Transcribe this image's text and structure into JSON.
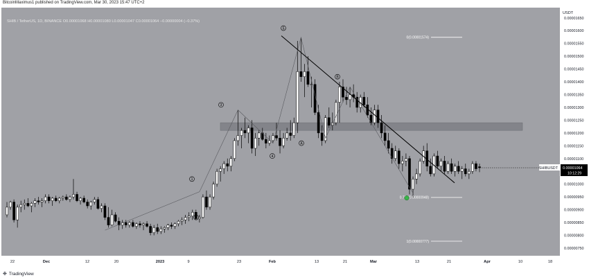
{
  "header": {
    "publisher_line": "BitcoinMaximus1 published on TradingView.com, Mar 30, 2023 15:47 UTC+2"
  },
  "symbol_bar": {
    "pair": "SHIB / TetherUS, 1D, BINANCE",
    "open_label": "O",
    "open": "0.00001068",
    "high_label": "H",
    "high": "0.00001080",
    "low_label": "L",
    "low": "0.00001047",
    "close_label": "C",
    "close": "0.00001064",
    "change": "−0.00000004 (−0.37%)"
  },
  "footer": {
    "brand": "TradingView"
  },
  "colors": {
    "background": "#a0a1a6",
    "up_candle": "#ffffff",
    "down_candle": "#000000",
    "zone": "#7a7b80",
    "price_tag_bg": "#000000",
    "green_marker": "#3ab54a"
  },
  "chart_data": {
    "type": "candlestick",
    "title": "SHIB / TetherUS, 1D, BINANCE",
    "ylabel": "USDT",
    "ylim": [
      7.2e-06,
      1.68e-05
    ],
    "x_tick_labels": [
      "22",
      "Dec",
      "12",
      "20",
      "2023",
      "9",
      "23",
      "Feb",
      "13",
      "21",
      "Mar",
      "13",
      "21",
      "Apr",
      "10",
      "18"
    ],
    "y_tick_labels": [
      "0.00001650",
      "0.00001600",
      "0.00001550",
      "0.00001500",
      "0.00001450",
      "0.00001400",
      "0.00001350",
      "0.00001300",
      "0.00001250",
      "0.00001200",
      "0.00001150",
      "0.00001100",
      "0.00001050",
      "0.00001000",
      "0.00000950",
      "0.00000900",
      "0.00000850",
      "0.00000800",
      "0.00000750"
    ],
    "current_price": {
      "symbol": "SHIBUSDT",
      "value": "0.00001064",
      "countdown": "10:12:29",
      "price": 1.064e-05
    },
    "fib_levels": [
      {
        "label": "0(0.00001574)",
        "price": 1.574e-05
      },
      {
        "label": "0.786(0.00000948)",
        "price": 9.48e-06
      },
      {
        "label": "1(0.00000777)",
        "price": 7.77e-06
      }
    ],
    "resistance_zone": {
      "low": 1.21e-05,
      "high": 1.24e-05
    },
    "wave_labels": [
      "1",
      "2",
      "3",
      "4",
      "5",
      "A",
      "B"
    ],
    "candles": [
      [
        8.8e-06,
        9.3e-06,
        8.7e-06,
        9.1e-06
      ],
      [
        9.1e-06,
        9.35e-06,
        9e-06,
        9.3e-06
      ],
      [
        9.3e-06,
        9.4e-06,
        8.5e-06,
        8.6e-06
      ],
      [
        8.6e-06,
        9.2e-06,
        8.3e-06,
        9.1e-06
      ],
      [
        9.1e-06,
        9.35e-06,
        8.9e-06,
        9.2e-06
      ],
      [
        9.2e-06,
        9.4e-06,
        9e-06,
        9.25e-06
      ],
      [
        9.25e-06,
        9.45e-06,
        9.1e-06,
        9.15e-06
      ],
      [
        9.15e-06,
        9.3e-06,
        8.9e-06,
        9.25e-06
      ],
      [
        9.25e-06,
        9.45e-06,
        9.1e-06,
        9.35e-06
      ],
      [
        9.35e-06,
        9.5e-06,
        9.2e-06,
        9.3e-06
      ],
      [
        9.3e-06,
        9.45e-06,
        9.1e-06,
        9.35e-06
      ],
      [
        9.35e-06,
        9.6e-06,
        9.25e-06,
        9.5e-06
      ],
      [
        9.5e-06,
        9.6e-06,
        9.25e-06,
        9.35e-06
      ],
      [
        9.35e-06,
        9.5e-06,
        9.15e-06,
        9.45e-06
      ],
      [
        9.45e-06,
        9.55e-06,
        9.3e-06,
        9.35e-06
      ],
      [
        9.35e-06,
        9.5e-06,
        9.25e-06,
        9.45e-06
      ],
      [
        9.45e-06,
        9.55e-06,
        9.35e-06,
        9.5e-06
      ],
      [
        9.5e-06,
        9.6e-06,
        9.35e-06,
        9.4e-06
      ],
      [
        9.4e-06,
        9.55e-06,
        9.3e-06,
        9.5e-06
      ],
      [
        9.5e-06,
        1.02e-05,
        9.4e-06,
        9.6e-06
      ],
      [
        9.6e-06,
        9.7e-06,
        9.3e-06,
        9.35e-06
      ],
      [
        9.35e-06,
        9.5e-06,
        9.2e-06,
        9.45e-06
      ],
      [
        9.45e-06,
        9.55e-06,
        9.25e-06,
        9.3e-06
      ],
      [
        9.3e-06,
        9.4e-06,
        9.05e-06,
        9.15e-06
      ],
      [
        9.15e-06,
        9.35e-06,
        9e-06,
        9.3e-06
      ],
      [
        9.3e-06,
        9.5e-06,
        9.2e-06,
        9.4e-06
      ],
      [
        9.4e-06,
        9.5e-06,
        9e-06,
        9.05e-06
      ],
      [
        9.05e-06,
        9.25e-06,
        8.9e-06,
        9.15e-06
      ],
      [
        9.15e-06,
        9.25e-06,
        8.6e-06,
        8.7e-06
      ],
      [
        8.7e-06,
        9.1e-06,
        8.3e-06,
        8.4e-06
      ],
      [
        8.4e-06,
        9e-06,
        8.35e-06,
        8.8e-06
      ],
      [
        8.8e-06,
        8.9e-06,
        8.5e-06,
        8.55e-06
      ],
      [
        8.55e-06,
        8.7e-06,
        8.2e-06,
        8.4e-06
      ],
      [
        8.4e-06,
        8.6e-06,
        8.25e-06,
        8.5e-06
      ],
      [
        8.5e-06,
        8.6e-06,
        8.3e-06,
        8.4e-06
      ],
      [
        8.4e-06,
        8.55e-06,
        8.3e-06,
        8.5e-06
      ],
      [
        8.5e-06,
        8.6e-06,
        8.3e-06,
        8.35e-06
      ],
      [
        8.35e-06,
        8.5e-06,
        8.25e-06,
        8.45e-06
      ],
      [
        8.45e-06,
        8.55e-06,
        8.3e-06,
        8.4e-06
      ],
      [
        8.4e-06,
        8.5e-06,
        8.2e-06,
        8.45e-06
      ],
      [
        8.45e-06,
        8.55e-06,
        8.3e-06,
        8.35e-06
      ],
      [
        8.35e-06,
        8.45e-06,
        8e-06,
        8.1e-06
      ],
      [
        8.1e-06,
        8.4e-06,
        8e-06,
        8.3e-06
      ],
      [
        8.3e-06,
        8.45e-06,
        8.05e-06,
        8.15e-06
      ],
      [
        8.15e-06,
        8.35e-06,
        8.05e-06,
        8.25e-06
      ],
      [
        8.25e-06,
        8.35e-06,
        8.1e-06,
        8.3e-06
      ],
      [
        8.3e-06,
        8.45e-06,
        8.2e-06,
        8.4e-06
      ],
      [
        8.4e-06,
        8.5e-06,
        8.25e-06,
        8.35e-06
      ],
      [
        8.35e-06,
        8.5e-06,
        8.25e-06,
        8.45e-06
      ],
      [
        8.45e-06,
        8.6e-06,
        8.35e-06,
        8.55e-06
      ],
      [
        8.55e-06,
        8.7e-06,
        8.4e-06,
        8.6e-06
      ],
      [
        8.6e-06,
        8.8e-06,
        8.45e-06,
        8.7e-06
      ],
      [
        8.7e-06,
        8.9e-06,
        8.55e-06,
        8.75e-06
      ],
      [
        8.75e-06,
        9e-06,
        8.6e-06,
        8.9e-06
      ],
      [
        8.9e-06,
        9e-06,
        8.6e-06,
        8.65e-06
      ],
      [
        8.65e-06,
        8.8e-06,
        8.5e-06,
        8.7e-06
      ],
      [
        8.7e-06,
        9.6e-06,
        8.65e-06,
        9.5e-06
      ],
      [
        9.5e-06,
        9.75e-06,
        9e-06,
        9.1e-06
      ],
      [
        9.1e-06,
        9.6e-06,
        9e-06,
        9.5e-06
      ],
      [
        9.5e-06,
        1.01e-05,
        9.4e-06,
        1e-05
      ],
      [
        1e-05,
        1.06e-05,
        9.9e-06,
        1.05e-05
      ],
      [
        1.05e-05,
        1.07e-05,
        1.01e-05,
        1.06e-05
      ],
      [
        1.06e-05,
        1.09e-05,
        1.04e-05,
        1.08e-05
      ],
      [
        1.08e-05,
        1.1e-05,
        1.05e-05,
        1.07e-05
      ],
      [
        1.07e-05,
        1.11e-05,
        1.05e-05,
        1.1e-05
      ],
      [
        1.1e-05,
        1.18e-05,
        1.09e-05,
        1.17e-05
      ],
      [
        1.17e-05,
        1.29e-05,
        1.15e-05,
        1.19e-05
      ],
      [
        1.19e-05,
        1.22e-05,
        1.14e-05,
        1.21e-05
      ],
      [
        1.21e-05,
        1.26e-05,
        1.18e-05,
        1.2e-05
      ],
      [
        1.2e-05,
        1.23e-05,
        1.16e-05,
        1.22e-05
      ],
      [
        1.22e-05,
        1.25e-05,
        1.12e-05,
        1.14e-05
      ],
      [
        1.14e-05,
        1.2e-05,
        1.11e-05,
        1.18e-05
      ],
      [
        1.18e-05,
        1.21e-05,
        1.15e-05,
        1.2e-05
      ],
      [
        1.2e-05,
        1.22e-05,
        1.17e-05,
        1.175e-05
      ],
      [
        1.175e-05,
        1.2e-05,
        1.14e-05,
        1.16e-05
      ],
      [
        1.16e-05,
        1.19e-05,
        1.15e-05,
        1.17e-05
      ],
      [
        1.17e-05,
        1.2e-05,
        1.16e-05,
        1.19e-05
      ],
      [
        1.19e-05,
        1.24e-05,
        1.17e-05,
        1.18e-05
      ],
      [
        1.18e-05,
        1.21e-05,
        1.12e-05,
        1.15e-05
      ],
      [
        1.15e-05,
        1.2e-05,
        1.14e-05,
        1.18e-05
      ],
      [
        1.18e-05,
        1.22e-05,
        1.17e-05,
        1.2e-05
      ],
      [
        1.2e-05,
        1.25e-05,
        1.17e-05,
        1.19e-05
      ],
      [
        1.19e-05,
        1.26e-05,
        1.18e-05,
        1.24e-05
      ],
      [
        1.24e-05,
        1.56e-05,
        1.2e-05,
        1.44e-05
      ],
      [
        1.44e-05,
        1.574e-05,
        1.4e-05,
        1.42e-05
      ],
      [
        1.42e-05,
        1.47e-05,
        1.34e-05,
        1.44e-05
      ],
      [
        1.44e-05,
        1.5e-05,
        1.38e-05,
        1.39e-05
      ],
      [
        1.39e-05,
        1.42e-05,
        1.3e-05,
        1.39e-05
      ],
      [
        1.39e-05,
        1.41e-05,
        1.27e-05,
        1.28e-05
      ],
      [
        1.28e-05,
        1.31e-05,
        1.18e-05,
        1.2e-05
      ],
      [
        1.2e-05,
        1.23e-05,
        1.15e-05,
        1.17e-05
      ],
      [
        1.17e-05,
        1.27e-05,
        1.16e-05,
        1.26e-05
      ],
      [
        1.26e-05,
        1.3e-05,
        1.22e-05,
        1.23e-05
      ],
      [
        1.23e-05,
        1.28e-05,
        1.21e-05,
        1.24e-05
      ],
      [
        1.24e-05,
        1.33e-05,
        1.23e-05,
        1.32e-05
      ],
      [
        1.32e-05,
        1.4e-05,
        1.24e-05,
        1.38e-05
      ],
      [
        1.38e-05,
        1.41e-05,
        1.32e-05,
        1.34e-05
      ],
      [
        1.34e-05,
        1.38e-05,
        1.31e-05,
        1.33e-05
      ],
      [
        1.33e-05,
        1.38e-05,
        1.3e-05,
        1.35e-05
      ],
      [
        1.35e-05,
        1.39e-05,
        1.32e-05,
        1.34e-05
      ],
      [
        1.34e-05,
        1.36e-05,
        1.28e-05,
        1.3e-05
      ],
      [
        1.3e-05,
        1.35e-05,
        1.28e-05,
        1.34e-05
      ],
      [
        1.34e-05,
        1.36e-05,
        1.3e-05,
        1.31e-05
      ],
      [
        1.31e-05,
        1.34e-05,
        1.26e-05,
        1.27e-05
      ],
      [
        1.27e-05,
        1.3e-05,
        1.23e-05,
        1.24e-05
      ],
      [
        1.24e-05,
        1.31e-05,
        1.23e-05,
        1.29e-05
      ],
      [
        1.29e-05,
        1.31e-05,
        1.22e-05,
        1.24e-05
      ],
      [
        1.24e-05,
        1.27e-05,
        1.18e-05,
        1.2e-05
      ],
      [
        1.2e-05,
        1.23e-05,
        1.15e-05,
        1.17e-05
      ],
      [
        1.17e-05,
        1.2e-05,
        1.12e-05,
        1.14e-05
      ],
      [
        1.14e-05,
        1.16e-05,
        1.08e-05,
        1.1e-05
      ],
      [
        1.1e-05,
        1.15e-05,
        1.09e-05,
        1.13e-05
      ],
      [
        1.13e-05,
        1.14e-05,
        1.06e-05,
        1.08e-05
      ],
      [
        1.08e-05,
        1.11e-05,
        1.05e-05,
        1.09e-05
      ],
      [
        1.09e-05,
        1.12e-05,
        1.07e-05,
        1.1e-05
      ],
      [
        1.1e-05,
        1.11e-05,
        9.6e-06,
        9.8e-06
      ],
      [
        9.8e-06,
        1.03e-05,
        9.48e-06,
        1.02e-05
      ],
      [
        1.02e-05,
        1.06e-05,
        1e-05,
        1.04e-05
      ],
      [
        1.04e-05,
        1.1e-05,
        1.03e-05,
        1.09e-05
      ],
      [
        1.09e-05,
        1.15e-05,
        1.08e-05,
        1.13e-05
      ],
      [
        1.13e-05,
        1.16e-05,
        1.05e-05,
        1.07e-05
      ],
      [
        1.07e-05,
        1.1e-05,
        1.03e-05,
        1.04e-05
      ],
      [
        1.04e-05,
        1.12e-05,
        1.03e-05,
        1.11e-05
      ],
      [
        1.11e-05,
        1.13e-05,
        1.06e-05,
        1.07e-05
      ],
      [
        1.07e-05,
        1.1e-05,
        1.05e-05,
        1.09e-05
      ],
      [
        1.09e-05,
        1.11e-05,
        1.04e-05,
        1.05e-05
      ],
      [
        1.05e-05,
        1.09e-05,
        1.04e-05,
        1.08e-05
      ],
      [
        1.08e-05,
        1.1e-05,
        1.04e-05,
        1.05e-05
      ],
      [
        1.05e-05,
        1.08e-05,
        1.03e-05,
        1.07e-05
      ],
      [
        1.07e-05,
        1.09e-05,
        1.04e-05,
        1.05e-05
      ],
      [
        1.05e-05,
        1.07e-05,
        1.02e-05,
        1.06e-05
      ],
      [
        1.06e-05,
        1.08e-05,
        1.03e-05,
        1.04e-05
      ],
      [
        1.04e-05,
        1.06e-05,
        1.02e-05,
        1.05e-05
      ],
      [
        1.05e-05,
        1.09e-05,
        1.04e-05,
        1.08e-05
      ],
      [
        1.08e-05,
        1.09e-05,
        1.05e-05,
        1.06e-05
      ],
      [
        1.068e-05,
        1.08e-05,
        1.047e-05,
        1.064e-05
      ]
    ]
  }
}
